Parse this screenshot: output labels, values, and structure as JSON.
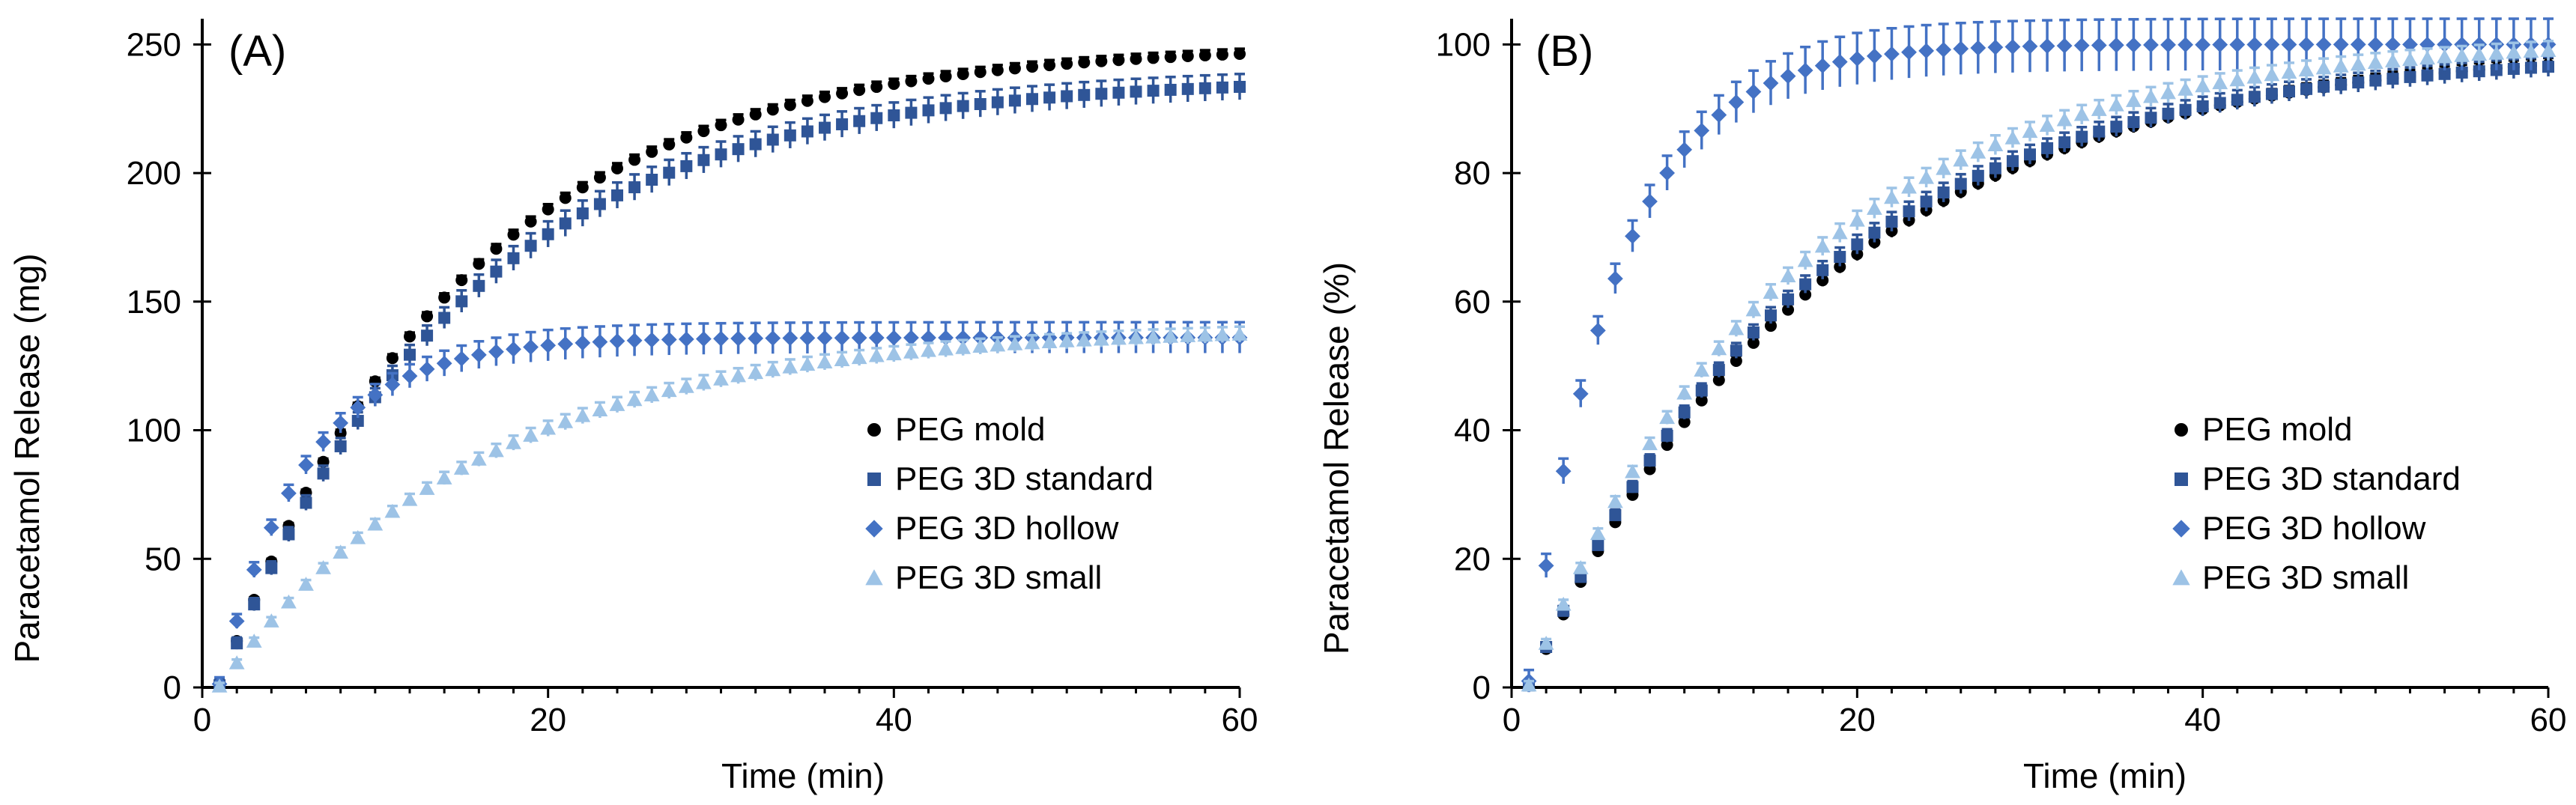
{
  "chart_data": [
    {
      "type": "scatter",
      "panel_label": "(A)",
      "xlabel": "Time (min)",
      "ylabel": "Paracetamol Release (mg)",
      "xlim": [
        0,
        60
      ],
      "ylim": [
        0,
        260
      ],
      "xticks": [
        0,
        20,
        40,
        60
      ],
      "yticks": [
        0,
        50,
        100,
        150,
        200,
        250
      ],
      "legend_position": "lower-right",
      "series": [
        {
          "name": "PEG mold",
          "marker": "circle",
          "color": "#000000",
          "cap": 250,
          "t63": 14,
          "err": 2
        },
        {
          "name": "PEG 3D standard",
          "marker": "square",
          "color": "#2f5597",
          "cap": 237,
          "t63": 14,
          "err": 5
        },
        {
          "name": "PEG 3D hollow",
          "marker": "diamond",
          "color": "#4472c4",
          "cap": 136,
          "t63": 5,
          "err": 6
        },
        {
          "name": "PEG 3D small",
          "marker": "triangle",
          "color": "#9dc3e6",
          "cap": 140,
          "t63": 15,
          "err": 3
        }
      ]
    },
    {
      "type": "scatter",
      "panel_label": "(B)",
      "xlabel": "Time (min)",
      "ylabel": "Paracetamol Release (%)",
      "xlim": [
        0,
        60
      ],
      "ylim": [
        0,
        104
      ],
      "xticks": [
        0,
        20,
        40,
        60
      ],
      "yticks": [
        0,
        20,
        40,
        60,
        80,
        100
      ],
      "legend_position": "lower-right",
      "series": [
        {
          "name": "PEG mold",
          "marker": "circle",
          "color": "#000000",
          "cap": 100,
          "t63": 17,
          "err": 1
        },
        {
          "name": "PEG 3D standard",
          "marker": "square",
          "color": "#2f5597",
          "cap": 99,
          "t63": 16,
          "err": 1.5
        },
        {
          "name": "PEG 3D hollow",
          "marker": "diamond",
          "color": "#4472c4",
          "cap": 100,
          "t63": 5,
          "err": 4
        },
        {
          "name": "PEG 3D small",
          "marker": "triangle",
          "color": "#9dc3e6",
          "cap": 101,
          "t63": 15,
          "err": 1.5
        }
      ]
    }
  ]
}
